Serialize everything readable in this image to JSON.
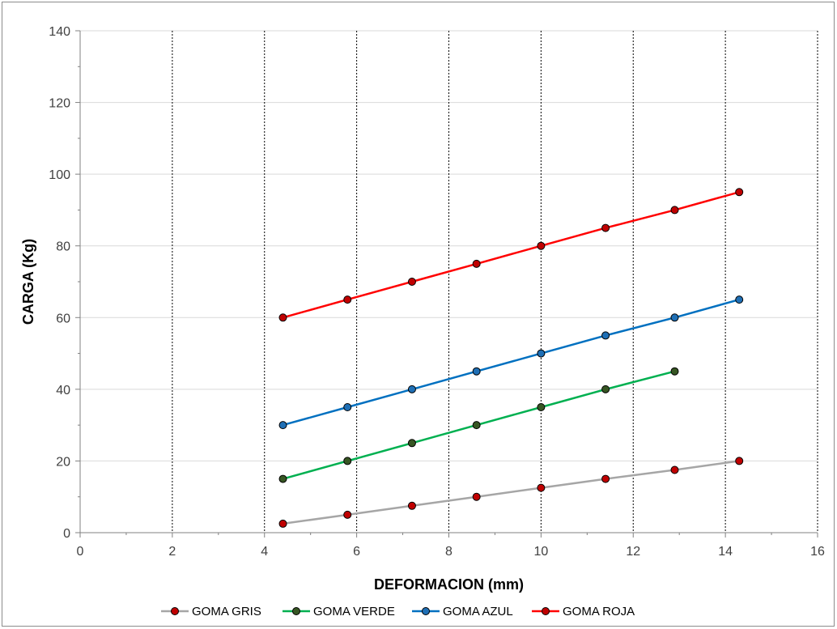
{
  "chart_data": {
    "type": "line",
    "title": "",
    "xlabel": "DEFORMACION (mm)",
    "ylabel": "CARGA (Kg)",
    "xlim": [
      0,
      16
    ],
    "ylim": [
      0,
      140
    ],
    "x_ticks": [
      "0",
      "2",
      "4",
      "6",
      "8",
      "10",
      "12",
      "14",
      "16"
    ],
    "y_ticks": [
      "0",
      "20",
      "40",
      "60",
      "80",
      "100",
      "120",
      "140"
    ],
    "grid": {
      "x": "dotted-vertical",
      "y": "solid-horizontal"
    },
    "legend_position": "bottom",
    "series": [
      {
        "name": "GOMA GRIS",
        "line_color": "#a6a6a6",
        "marker_color": "#c00000",
        "x": [
          4.4,
          5.8,
          7.2,
          8.6,
          10.0,
          11.4,
          12.9,
          14.3
        ],
        "y": [
          2.5,
          5,
          7.5,
          10,
          12.5,
          15,
          17.5,
          20
        ]
      },
      {
        "name": "GOMA VERDE",
        "line_color": "#00b050",
        "marker_color": "#375623",
        "x": [
          4.4,
          5.8,
          7.2,
          8.6,
          10.0,
          11.4,
          12.9
        ],
        "y": [
          15,
          20,
          25,
          30,
          35,
          40,
          45
        ]
      },
      {
        "name": "GOMA AZUL",
        "line_color": "#0070c0",
        "marker_color": "#1f6fb5",
        "x": [
          4.4,
          5.8,
          7.2,
          8.6,
          10.0,
          11.4,
          12.9,
          14.3
        ],
        "y": [
          30,
          35,
          40,
          45,
          50,
          55,
          60,
          65
        ]
      },
      {
        "name": "GOMA ROJA",
        "line_color": "#ff0000",
        "marker_color": "#c00000",
        "x": [
          4.4,
          5.8,
          7.2,
          8.6,
          10.0,
          11.4,
          12.9,
          14.3
        ],
        "y": [
          60,
          65,
          70,
          75,
          80,
          85,
          90,
          95
        ]
      }
    ]
  }
}
